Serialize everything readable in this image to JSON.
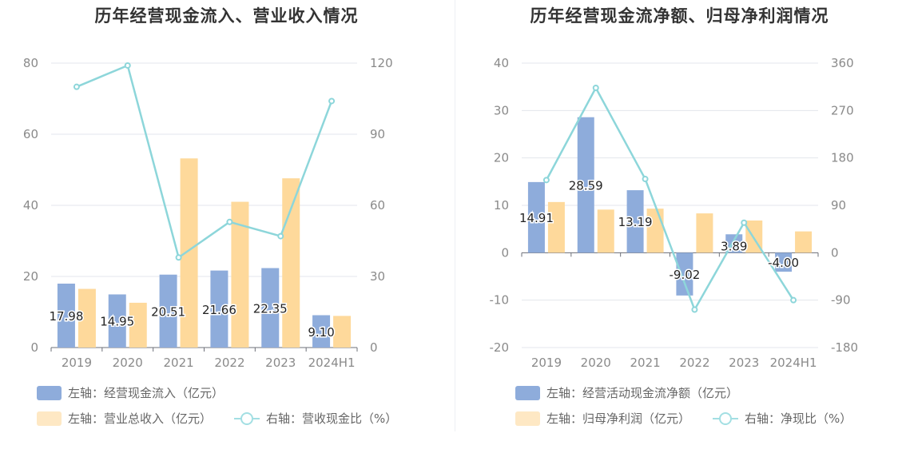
{
  "colors": {
    "bar_blue": "#8eacdb",
    "bar_orange": "#fed99b",
    "line_cyan": "#8dd6da",
    "legend_blue": "#8eacdb",
    "legend_orange": "#fee8c4",
    "legend_cyan": "#a3dfe3",
    "grid": "#e3e6ec",
    "axis_text": "#8a8a8a"
  },
  "chart_data": [
    {
      "type": "bar",
      "title": "历年经营现金流入、营业收入情况",
      "categories": [
        "2019",
        "2020",
        "2021",
        "2022",
        "2023",
        "2024H1"
      ],
      "ylim_left": [
        0,
        80
      ],
      "ylim_right": [
        0,
        120
      ],
      "left_ticks": [
        "80",
        "60",
        "40",
        "20",
        "0"
      ],
      "right_ticks": [
        "120",
        "90",
        "60",
        "30",
        "0"
      ],
      "series": [
        {
          "name": "左轴：经营现金流入（亿元）",
          "kind": "bar",
          "axis": "left",
          "color": "#8eacdb",
          "values": [
            17.98,
            14.95,
            20.51,
            21.66,
            22.35,
            9.1
          ],
          "labels": [
            "17.98",
            "14.95",
            "20.51",
            "21.66",
            "22.35",
            "9.10"
          ]
        },
        {
          "name": "左轴：营业总收入（亿元）",
          "kind": "bar",
          "axis": "left",
          "color": "#fed99b",
          "values": [
            16.5,
            12.6,
            53.2,
            41.0,
            47.6,
            8.9
          ]
        },
        {
          "name": "右轴：营收现金比（%）",
          "kind": "line",
          "axis": "right",
          "color": "#8dd6da",
          "values": [
            110,
            119,
            38,
            53,
            47,
            104
          ]
        }
      ],
      "grid": true,
      "legend": "bottom"
    },
    {
      "type": "bar",
      "title": "历年经营现金流净额、归母净利润情况",
      "categories": [
        "2019",
        "2020",
        "2021",
        "2022",
        "2023",
        "2024H1"
      ],
      "ylim_left": [
        -20,
        40
      ],
      "ylim_right": [
        -180,
        360
      ],
      "left_ticks": [
        "40",
        "30",
        "20",
        "10",
        "0",
        "-10",
        "-20"
      ],
      "right_ticks": [
        "360",
        "270",
        "180",
        "90",
        "0",
        "-90",
        "-180"
      ],
      "series": [
        {
          "name": "左轴：经营活动现金流净额（亿元）",
          "kind": "bar",
          "axis": "left",
          "color": "#8eacdb",
          "values": [
            14.91,
            28.59,
            13.19,
            -9.02,
            3.89,
            -4.0
          ],
          "labels": [
            "14.91",
            "28.59",
            "13.19",
            "-9.02",
            "3.89",
            "-4.00"
          ]
        },
        {
          "name": "左轴：归母净利润（亿元）",
          "kind": "bar",
          "axis": "left",
          "color": "#fed99b",
          "values": [
            10.7,
            9.1,
            9.3,
            8.3,
            6.8,
            4.5
          ]
        },
        {
          "name": "右轴：净现比（%）",
          "kind": "line",
          "axis": "right",
          "color": "#8dd6da",
          "values": [
            138,
            313,
            140,
            -108,
            57,
            -90
          ]
        }
      ],
      "grid": true,
      "legend": "bottom"
    }
  ]
}
